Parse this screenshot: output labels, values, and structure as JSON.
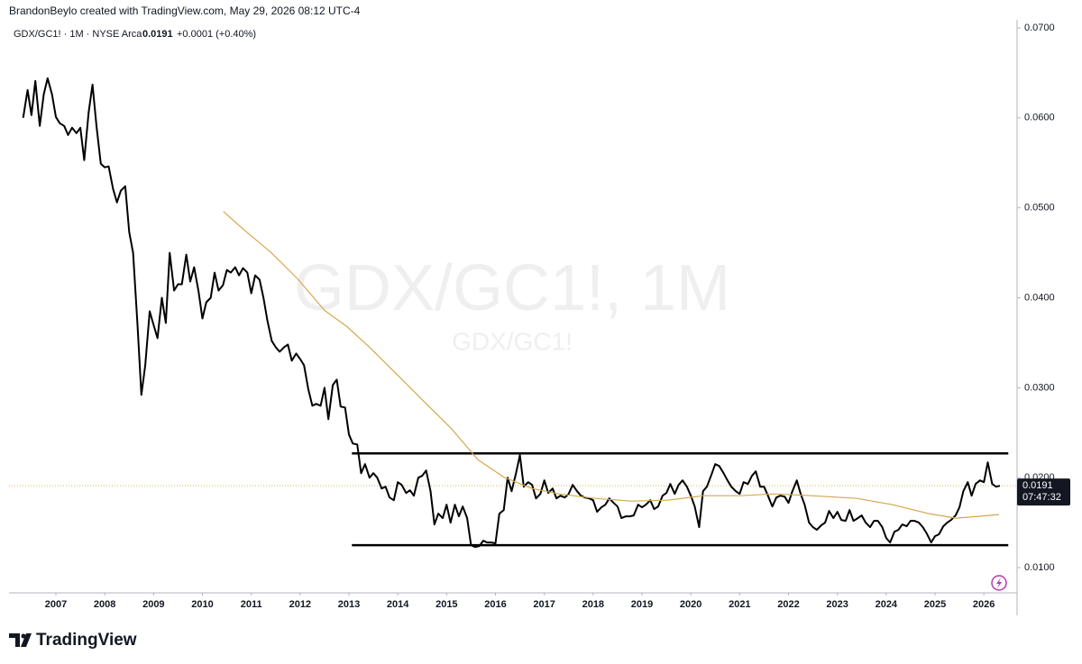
{
  "header": {
    "attribution": "BrandonBeylo created with TradingView.com, May 29, 2026 08:12 UTC-4",
    "symbol_line": "GDX/GC1! · 1M · NYSE Arca",
    "last": "0.0191",
    "change": "+0.0001 (+0.40%)"
  },
  "watermark": {
    "main": "GDX/GC1!, 1M",
    "sub": "GDX/GC1!"
  },
  "logo": "TradingView",
  "chart_data": {
    "type": "line",
    "xlim": [
      2006.04,
      2026.68
    ],
    "xticks": [
      2007,
      2008,
      2009,
      2010,
      2011,
      2012,
      2013,
      2014,
      2015,
      2016,
      2017,
      2018,
      2019,
      2020,
      2021,
      2022,
      2023,
      2024,
      2025,
      2026
    ],
    "ylim": [
      0.0072,
      0.0709
    ],
    "yticks": [
      {
        "value": 0.01,
        "label": "0.0100"
      },
      {
        "value": 0.02,
        "label": "0.0200"
      },
      {
        "value": 0.03,
        "label": "0.0300"
      },
      {
        "value": 0.04,
        "label": "0.0400"
      },
      {
        "value": 0.05,
        "label": "0.0500"
      },
      {
        "value": 0.06,
        "label": "0.0600"
      },
      {
        "value": 0.07,
        "label": "0.0700"
      }
    ],
    "last_price": {
      "value": 0.0191,
      "label": "0.0191",
      "color": "#e0b060"
    },
    "countdown": "07:47:32",
    "levels": [
      {
        "value": 0.0227,
        "x": [
          2013.06,
          2026.5
        ],
        "color": "#000000"
      },
      {
        "value": 0.0125,
        "x": [
          2013.06,
          2026.5
        ],
        "color": "#000000"
      }
    ],
    "series": [
      {
        "color": "#000000",
        "x": [
          2006.33,
          2006.42,
          2006.5,
          2006.58,
          2006.67,
          2006.75,
          2006.83,
          2006.92,
          2007,
          2007.08,
          2007.17,
          2007.25,
          2007.33,
          2007.42,
          2007.5,
          2007.58,
          2007.67,
          2007.75,
          2007.83,
          2007.92,
          2008,
          2008.08,
          2008.17,
          2008.25,
          2008.33,
          2008.42,
          2008.5,
          2008.58,
          2008.67,
          2008.75,
          2008.83,
          2008.92,
          2009,
          2009.08,
          2009.17,
          2009.25,
          2009.33,
          2009.42,
          2009.5,
          2009.58,
          2009.67,
          2009.75,
          2009.83,
          2009.92,
          2010,
          2010.08,
          2010.17,
          2010.25,
          2010.33,
          2010.42,
          2010.5,
          2010.58,
          2010.67,
          2010.75,
          2010.83,
          2010.92,
          2011,
          2011.08,
          2011.17,
          2011.25,
          2011.33,
          2011.42,
          2011.5,
          2011.58,
          2011.67,
          2011.75,
          2011.83,
          2011.92,
          2012,
          2012.08,
          2012.17,
          2012.25,
          2012.33,
          2012.42,
          2012.5,
          2012.58,
          2012.67,
          2012.75,
          2012.83,
          2012.92,
          2013,
          2013.08,
          2013.17,
          2013.25,
          2013.33,
          2013.42,
          2013.5,
          2013.58,
          2013.67,
          2013.75,
          2013.83,
          2013.92,
          2014,
          2014.08,
          2014.17,
          2014.25,
          2014.33,
          2014.42,
          2014.5,
          2014.58,
          2014.67,
          2014.75,
          2014.83,
          2014.92,
          2015,
          2015.08,
          2015.17,
          2015.25,
          2015.33,
          2015.42,
          2015.5,
          2015.58,
          2015.67,
          2015.75,
          2015.83,
          2015.92,
          2016,
          2016.08,
          2016.17,
          2016.25,
          2016.33,
          2016.42,
          2016.5,
          2016.58,
          2016.67,
          2016.75,
          2016.83,
          2016.92,
          2017,
          2017.08,
          2017.17,
          2017.25,
          2017.33,
          2017.42,
          2017.5,
          2017.58,
          2017.67,
          2017.75,
          2017.83,
          2017.92,
          2018,
          2018.08,
          2018.17,
          2018.25,
          2018.33,
          2018.42,
          2018.5,
          2018.58,
          2018.67,
          2018.75,
          2018.83,
          2018.92,
          2019,
          2019.08,
          2019.17,
          2019.25,
          2019.33,
          2019.42,
          2019.5,
          2019.58,
          2019.67,
          2019.75,
          2019.83,
          2019.92,
          2020,
          2020.08,
          2020.17,
          2020.25,
          2020.33,
          2020.42,
          2020.5,
          2020.58,
          2020.67,
          2020.75,
          2020.83,
          2020.92,
          2021,
          2021.08,
          2021.17,
          2021.25,
          2021.33,
          2021.42,
          2021.5,
          2021.58,
          2021.67,
          2021.75,
          2021.83,
          2021.92,
          2022,
          2022.08,
          2022.17,
          2022.25,
          2022.33,
          2022.42,
          2022.5,
          2022.58,
          2022.67,
          2022.75,
          2022.83,
          2022.92,
          2023,
          2023.08,
          2023.17,
          2023.25,
          2023.33,
          2023.42,
          2023.5,
          2023.58,
          2023.67,
          2023.75,
          2023.83,
          2023.92,
          2024,
          2024.08,
          2024.17,
          2024.25,
          2024.33,
          2024.42,
          2024.5,
          2024.58,
          2024.67,
          2024.75,
          2024.83,
          2024.92,
          2025,
          2025.08,
          2025.17,
          2025.25,
          2025.33,
          2025.42,
          2025.5,
          2025.58,
          2025.67,
          2025.75,
          2025.83,
          2025.92,
          2026,
          2026.08,
          2026.17,
          2026.25,
          2026.33
        ],
        "values": [
          0.06,
          0.0631,
          0.0603,
          0.0641,
          0.0591,
          0.0626,
          0.0644,
          0.0626,
          0.0601,
          0.0594,
          0.0591,
          0.0581,
          0.0589,
          0.0583,
          0.0589,
          0.0553,
          0.0606,
          0.0637,
          0.0591,
          0.0549,
          0.0545,
          0.0546,
          0.0521,
          0.0506,
          0.0519,
          0.0524,
          0.0473,
          0.045,
          0.037,
          0.0292,
          0.0325,
          0.0385,
          0.037,
          0.0355,
          0.04,
          0.0372,
          0.045,
          0.0408,
          0.0415,
          0.0415,
          0.0448,
          0.0418,
          0.0434,
          0.0407,
          0.0377,
          0.0395,
          0.04,
          0.0428,
          0.0408,
          0.0414,
          0.0431,
          0.0428,
          0.0434,
          0.0425,
          0.0433,
          0.0428,
          0.0405,
          0.0425,
          0.042,
          0.04,
          0.0375,
          0.0352,
          0.0345,
          0.034,
          0.0345,
          0.0348,
          0.033,
          0.0338,
          0.0332,
          0.0325,
          0.0298,
          0.028,
          0.0282,
          0.028,
          0.03,
          0.0265,
          0.0303,
          0.0309,
          0.0279,
          0.0278,
          0.0248,
          0.0238,
          0.0237,
          0.0205,
          0.0215,
          0.02,
          0.0205,
          0.02,
          0.0188,
          0.019,
          0.0178,
          0.0175,
          0.0195,
          0.0192,
          0.0183,
          0.0186,
          0.018,
          0.02,
          0.0202,
          0.0208,
          0.0185,
          0.0148,
          0.016,
          0.0155,
          0.017,
          0.015,
          0.017,
          0.0157,
          0.0168,
          0.0155,
          0.0125,
          0.0123,
          0.0124,
          0.013,
          0.0128,
          0.0128,
          0.0127,
          0.016,
          0.0164,
          0.02,
          0.0185,
          0.0205,
          0.0225,
          0.019,
          0.0195,
          0.0192,
          0.0177,
          0.0182,
          0.0197,
          0.0183,
          0.0188,
          0.0177,
          0.018,
          0.0178,
          0.0182,
          0.0192,
          0.0185,
          0.018,
          0.0178,
          0.0177,
          0.0175,
          0.0162,
          0.0167,
          0.017,
          0.0177,
          0.0172,
          0.0168,
          0.0155,
          0.0157,
          0.0157,
          0.0158,
          0.017,
          0.0167,
          0.017,
          0.0175,
          0.0165,
          0.0168,
          0.018,
          0.0183,
          0.0193,
          0.0182,
          0.0192,
          0.0197,
          0.019,
          0.018,
          0.0168,
          0.0145,
          0.0185,
          0.019,
          0.0203,
          0.0215,
          0.0213,
          0.0205,
          0.0197,
          0.019,
          0.0185,
          0.0182,
          0.0195,
          0.0193,
          0.0202,
          0.0207,
          0.019,
          0.019,
          0.018,
          0.0168,
          0.0178,
          0.018,
          0.0179,
          0.0172,
          0.0185,
          0.0197,
          0.0182,
          0.017,
          0.015,
          0.0145,
          0.0142,
          0.0147,
          0.015,
          0.0163,
          0.0155,
          0.0162,
          0.0153,
          0.0152,
          0.0164,
          0.0152,
          0.0155,
          0.0158,
          0.015,
          0.0145,
          0.0152,
          0.0152,
          0.0145,
          0.0133,
          0.0128,
          0.014,
          0.0142,
          0.0148,
          0.0146,
          0.0152,
          0.0152,
          0.015,
          0.0145,
          0.0138,
          0.0128,
          0.0135,
          0.0137,
          0.0146,
          0.015,
          0.0153,
          0.0158,
          0.0167,
          0.0185,
          0.0195,
          0.018,
          0.0193,
          0.0197,
          0.0195,
          0.0217,
          0.0193,
          0.019,
          0.0191
        ]
      },
      {
        "color": "#d4a84f",
        "x": [
          2010.43,
          2010.84,
          2011.39,
          2011.95,
          2012.5,
          2012.96,
          2013.42,
          2013.98,
          2014.53,
          2015.09,
          2015.64,
          2016.19,
          2016.75,
          2017.3,
          2018.04,
          2018.78,
          2019.52,
          2020.26,
          2021,
          2021.73,
          2022.47,
          2023.4,
          2024.13,
          2024.87,
          2025.43,
          2025.89,
          2026.31
        ],
        "values": [
          0.0496,
          0.0476,
          0.0451,
          0.0421,
          0.0386,
          0.0368,
          0.0345,
          0.0315,
          0.0285,
          0.0255,
          0.022,
          0.02,
          0.0188,
          0.0182,
          0.0177,
          0.0174,
          0.0175,
          0.018,
          0.018,
          0.0182,
          0.018,
          0.0177,
          0.017,
          0.016,
          0.0155,
          0.0157,
          0.0159
        ]
      }
    ]
  }
}
